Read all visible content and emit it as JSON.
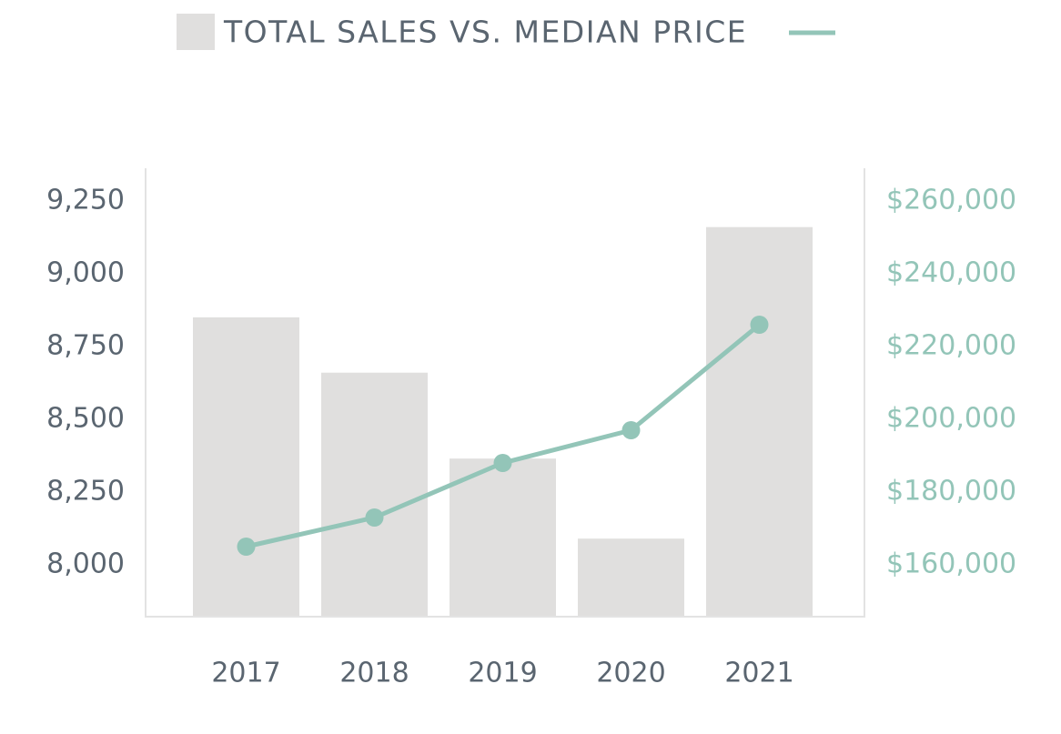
{
  "chart_data": {
    "type": "bar-line",
    "title": "TOTAL SALES VS. MEDIAN PRICE",
    "categories": [
      "2017",
      "2018",
      "2019",
      "2020",
      "2021"
    ],
    "series": [
      {
        "type": "bar",
        "color": "#e0dfde",
        "values": [
          8850,
          8660,
          8365,
          8090,
          9160
        ]
      },
      {
        "type": "line",
        "axis": "y2",
        "color": "#93c5b8",
        "values": [
          165000,
          173000,
          188000,
          197000,
          226000
        ]
      }
    ],
    "ylim": [
      7822,
      9362
    ],
    "yticks": [
      {
        "value": 8000,
        "label": "8,000"
      },
      {
        "value": 8250,
        "label": "8,250"
      },
      {
        "value": 8500,
        "label": "8,500"
      },
      {
        "value": 8750,
        "label": "8,750"
      },
      {
        "value": 9000,
        "label": "9,000"
      },
      {
        "value": 9250,
        "label": "9,250"
      }
    ],
    "y2lim": [
      145750,
      269000
    ],
    "y2ticks": [
      {
        "value": 160000,
        "label": "$160,000"
      },
      {
        "value": 180000,
        "label": "$180,000"
      },
      {
        "value": 200000,
        "label": "$200,000"
      },
      {
        "value": 220000,
        "label": "$220,000"
      },
      {
        "value": 240000,
        "label": "$240,000"
      },
      {
        "value": 260000,
        "label": "$260,000"
      }
    ],
    "grid": false
  }
}
